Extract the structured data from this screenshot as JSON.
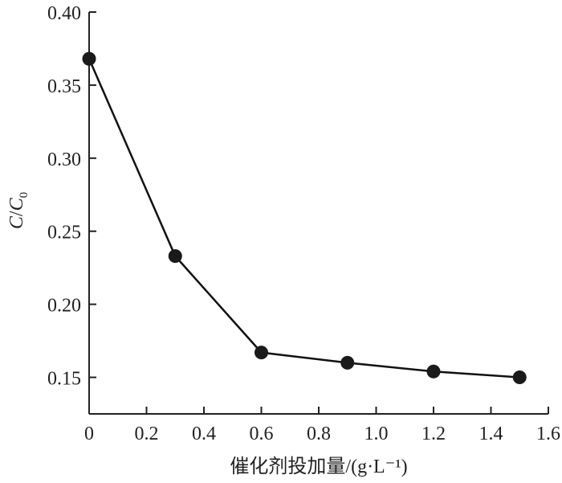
{
  "chart_data": {
    "type": "line",
    "title": "",
    "xlabel": "催化剂投加量/(g·L⁻¹)",
    "ylabel": "C/C0",
    "xlim": [
      0,
      1.6
    ],
    "ylim": [
      0.125,
      0.4
    ],
    "x_ticks": [
      "0",
      "0.2",
      "0.4",
      "0.6",
      "0.8",
      "1.0",
      "1.2",
      "1.4",
      "1.6"
    ],
    "y_ticks": [
      "0.15",
      "0.20",
      "0.25",
      "0.30",
      "0.35",
      "0.40"
    ],
    "grid": false,
    "series": [
      {
        "x": [
          0,
          0.3,
          0.6,
          0.9,
          1.2,
          1.5
        ],
        "values": [
          0.368,
          0.233,
          0.167,
          0.16,
          0.154,
          0.15
        ],
        "color": "#111111"
      }
    ]
  }
}
